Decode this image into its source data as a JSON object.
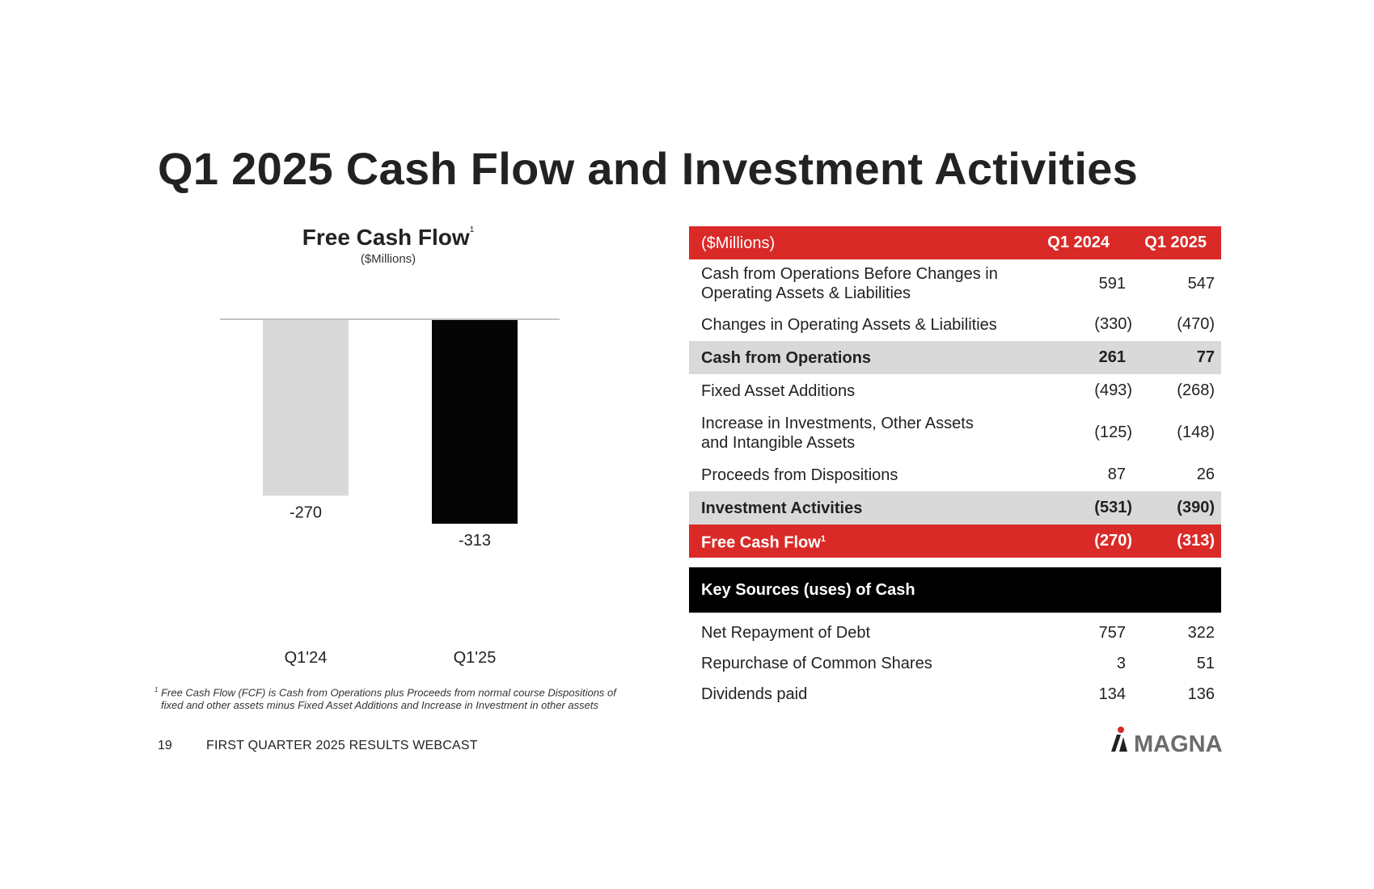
{
  "page": {
    "title": "Q1 2025 Cash Flow and Investment Activities",
    "page_number": "19",
    "footer_text": "FIRST QUARTER 2025 RESULTS WEBCAST",
    "logo_text": "MAGNA"
  },
  "chart": {
    "title": "Free Cash Flow",
    "title_sup": "1",
    "subtitle": "($Millions)",
    "footnote_sup": "1",
    "footnote_line1": "Free Cash Flow (FCF) is Cash from Operations plus Proceeds from normal course Dispositions of",
    "footnote_line2": "fixed and other assets minus Fixed Asset Additions and Increase in Investment in other assets"
  },
  "chart_data": {
    "type": "bar",
    "title": "Free Cash Flow",
    "subtitle": "($Millions)",
    "categories": [
      "Q1'24",
      "Q1'25"
    ],
    "values": [
      -270,
      -313
    ],
    "data_labels": [
      "-270",
      "-313"
    ],
    "colors": [
      "#d9d9d9",
      "#050505"
    ],
    "ylim": [
      -313,
      0
    ],
    "xlabel": "",
    "ylabel": "",
    "grid": false
  },
  "table": {
    "header": {
      "label": "($Millions)",
      "col1": "Q1 2024",
      "col2": "Q1 2025"
    },
    "rows": [
      {
        "label_line1": "Cash from Operations Before Changes in",
        "label_line2": "Operating Assets & Liabilities",
        "q1_2024": "591",
        "q1_2025": "547"
      },
      {
        "label": "Changes in Operating Assets & Liabilities",
        "q1_2024": "(330)",
        "q1_2025": "(470)"
      },
      {
        "label": "Cash from Operations",
        "q1_2024": "261",
        "q1_2025": "77"
      },
      {
        "label": "Fixed Asset Additions",
        "q1_2024": "(493)",
        "q1_2025": "(268)"
      },
      {
        "label_line1": "Increase in Investments, Other Assets",
        "label_line2": "and Intangible Assets",
        "q1_2024": "(125)",
        "q1_2025": "(148)"
      },
      {
        "label": "Proceeds from Dispositions",
        "q1_2024": "87",
        "q1_2025": "26"
      },
      {
        "label": "Investment Activities",
        "q1_2024": "(531)",
        "q1_2025": "(390)"
      },
      {
        "label": "Free Cash Flow",
        "label_sup": "1",
        "q1_2024": "(270)",
        "q1_2025": "(313)"
      }
    ],
    "key_sources": {
      "title": "Key Sources (uses) of Cash",
      "rows": [
        {
          "label": "Net Repayment of Debt",
          "q1_2024": "757",
          "q1_2025": "322"
        },
        {
          "label": "Repurchase of Common Shares",
          "q1_2024": "3",
          "q1_2025": "51"
        },
        {
          "label": "Dividends paid",
          "q1_2024": "134",
          "q1_2025": "136"
        }
      ]
    }
  },
  "colors": {
    "accent_red": "#da2a28",
    "subtotal_gray": "#d9d9d9",
    "text_dark": "#222222"
  }
}
